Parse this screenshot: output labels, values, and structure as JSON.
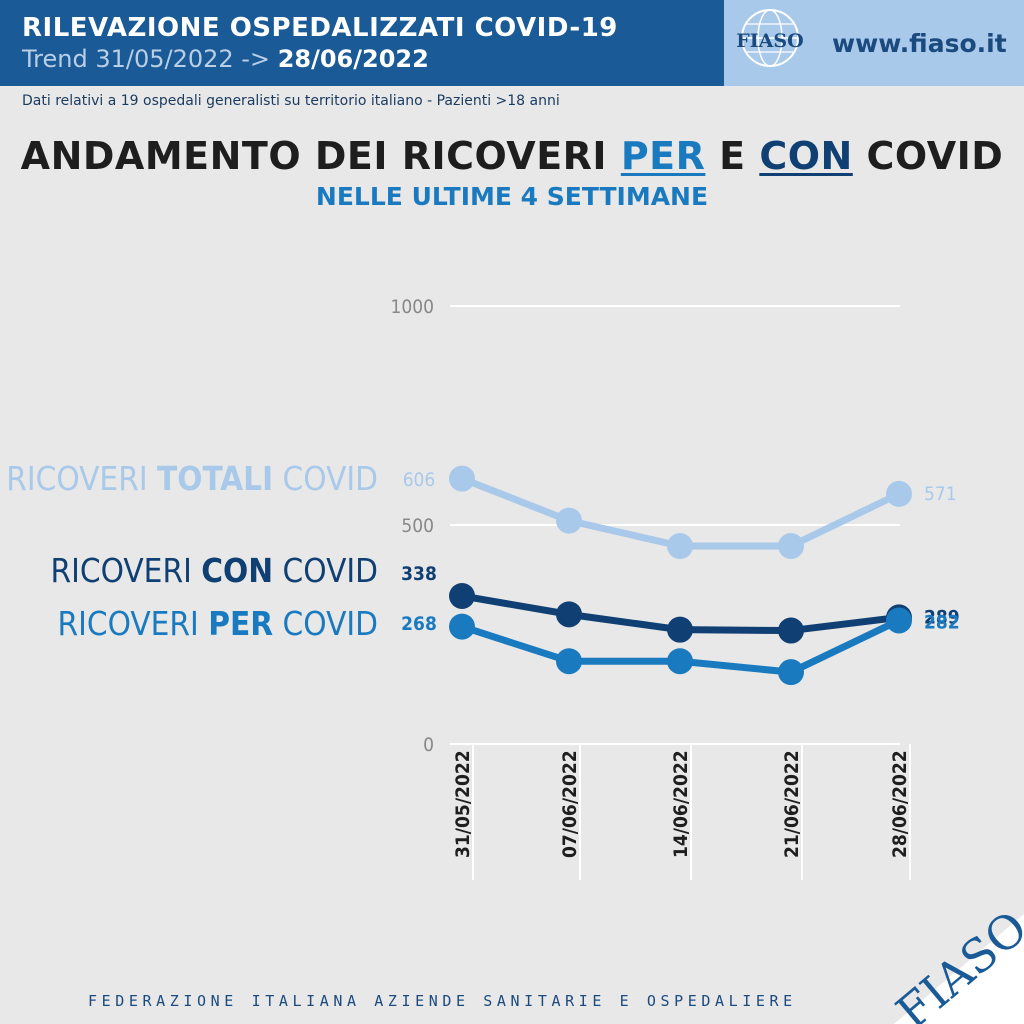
{
  "header": {
    "title": "RILEVAZIONE OSPEDALIZZATI COVID-19",
    "trend_prefix": "Trend 31/05/2022 ->",
    "trend_end": "28/06/2022",
    "site": "www.fiaso.it",
    "logo_text": "FIASO"
  },
  "subtitle_line": "Dati relativi a 19 ospedali generalisti su territorio italiano - Pazienti >18 anni",
  "main_title": {
    "part1": "ANDAMENTO DEI RICOVERI ",
    "per": "PER",
    "middle": " E ",
    "con": "CON",
    "part2": " COVID"
  },
  "chart_subtitle": "NELLE ULTIME 4 SETTIMANE",
  "footer": "FEDERAZIONE ITALIANA AZIENDE SANITARIE E OSPEDALIERE",
  "corner_logo": "FIASO",
  "colors": {
    "totali": "#a9c9ea",
    "con": "#0f3f73",
    "per": "#1a7ac0",
    "grid": "#ffffff",
    "tick": "#888888"
  },
  "chart_data": {
    "type": "line",
    "x": [
      "31/05/2022",
      "07/06/2022",
      "14/06/2022",
      "21/06/2022",
      "28/06/2022"
    ],
    "ylim": [
      0,
      1000
    ],
    "y_ticks": [
      "0",
      "500",
      "1000"
    ],
    "y_tick_values": [
      0,
      500,
      1000
    ],
    "grid": true,
    "legend": "left",
    "series": [
      {
        "key": "totali",
        "name_pre": "RICOVERI ",
        "name_bold": "TOTALI",
        "name_post": " COVID",
        "values": [
          606,
          510,
          452,
          452,
          571
        ],
        "start_label": "606",
        "end_label": "571"
      },
      {
        "key": "con",
        "name_pre": "RICOVERI ",
        "name_bold": "CON",
        "name_post": " COVID",
        "values": [
          338,
          296,
          261,
          259,
          289
        ],
        "start_label": "338",
        "end_label": "289"
      },
      {
        "key": "per",
        "name_pre": "RICOVERI ",
        "name_bold": "PER",
        "name_post": " COVID",
        "values": [
          268,
          189,
          189,
          164,
          282
        ],
        "start_label": "268",
        "end_label": "282"
      }
    ]
  }
}
